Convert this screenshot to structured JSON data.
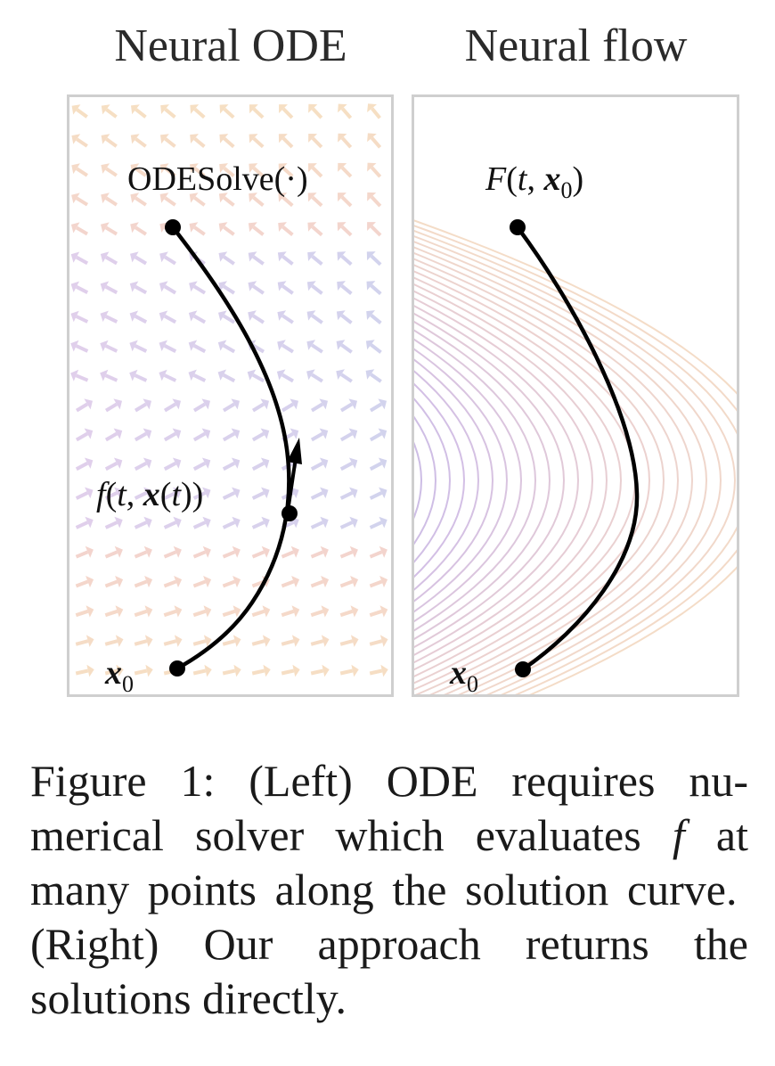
{
  "left_panel": {
    "title": "Neural ODE",
    "solve_label": "ODESolve(·)",
    "vector_label": "f(t, x(t))",
    "start_label": "x0",
    "arrow_colors": [
      "#f0c890",
      "#eab0a8",
      "#c8a8dc",
      "#aeb0e0"
    ]
  },
  "right_panel": {
    "title": "Neural flow",
    "flow_label": "F(t, x0)",
    "start_label": "x0",
    "contour_colors": [
      "#a6a0dc",
      "#c4aadc",
      "#e2bfc2",
      "#f0d0b4"
    ]
  },
  "caption": "Figure 1: (Left) ODE requires numerical solver which evaluates f at many points along the solution curve. (Right) Our approach returns the solutions directly."
}
